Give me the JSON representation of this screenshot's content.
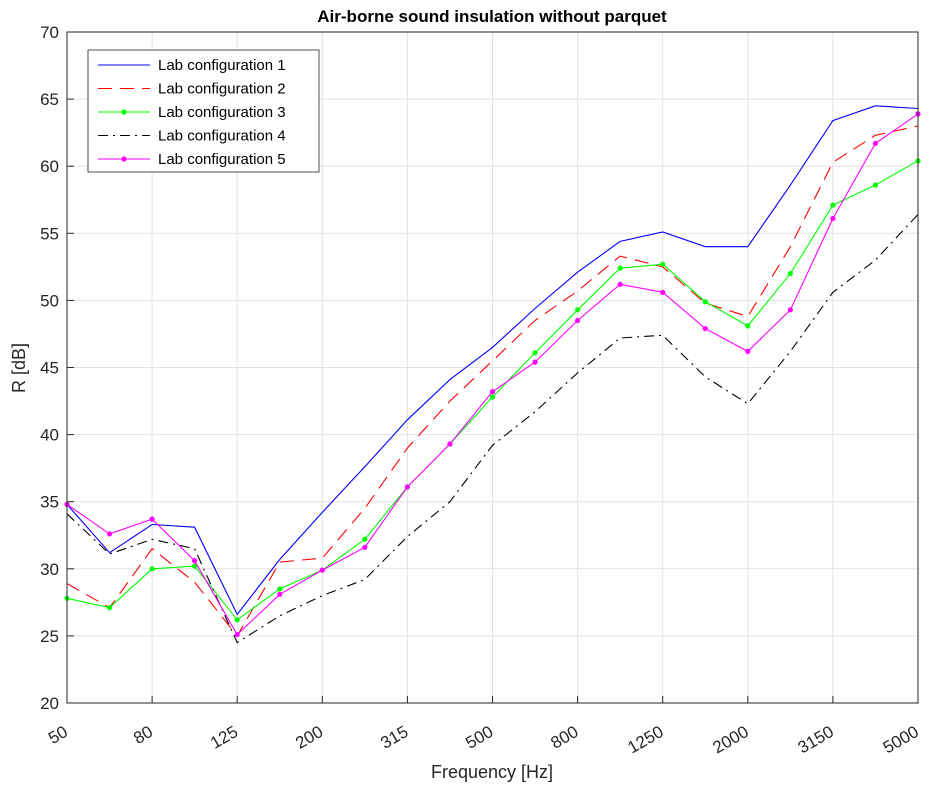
{
  "chart_data": {
    "type": "line",
    "title": "Air-borne sound insulation without parquet",
    "xlabel": "Frequency [Hz]",
    "ylabel": "R [dB]",
    "ylim": [
      20,
      70
    ],
    "yticks": [
      20,
      25,
      30,
      35,
      40,
      45,
      50,
      55,
      60,
      65,
      70
    ],
    "x": [
      50,
      63,
      80,
      100,
      125,
      160,
      200,
      250,
      315,
      400,
      500,
      630,
      800,
      1000,
      1250,
      1600,
      2000,
      2500,
      3150,
      4000,
      5000
    ],
    "x_tick_labels": [
      "50",
      "80",
      "125",
      "200",
      "315",
      "500",
      "800",
      "1250",
      "2000",
      "3150",
      "5000"
    ],
    "x_tick_indices": [
      0,
      2,
      4,
      6,
      8,
      10,
      12,
      14,
      16,
      18,
      20
    ],
    "grid": true,
    "legend_position": "top-left",
    "series": [
      {
        "name": "Lab configuration 1",
        "color": "#0000ff",
        "dash": "solid",
        "marker": false,
        "values": [
          34.8,
          31.2,
          33.3,
          33.1,
          26.6,
          30.7,
          34.2,
          37.6,
          41.1,
          44.1,
          46.5,
          49.4,
          52.1,
          54.4,
          55.1,
          54.0,
          54.0,
          58.6,
          63.4,
          64.5,
          64.3
        ]
      },
      {
        "name": "Lab configuration 2",
        "color": "#ff0000",
        "dash": "dashed",
        "marker": false,
        "values": [
          28.9,
          27.1,
          31.5,
          29.0,
          25.0,
          30.5,
          30.8,
          34.5,
          39.0,
          42.5,
          45.5,
          48.5,
          50.7,
          53.3,
          52.5,
          49.8,
          48.8,
          54.0,
          60.3,
          62.3,
          63.0
        ]
      },
      {
        "name": "Lab configuration 3",
        "color": "#00ff00",
        "dash": "solid",
        "marker": true,
        "values": [
          27.8,
          27.1,
          30.0,
          30.2,
          26.2,
          28.5,
          29.9,
          32.2,
          36.1,
          39.3,
          42.8,
          46.1,
          49.3,
          52.4,
          52.7,
          49.9,
          48.1,
          52.0,
          57.1,
          58.6,
          60.4
        ]
      },
      {
        "name": "Lab configuration 4",
        "color": "#000000",
        "dash": "dashdot",
        "marker": false,
        "values": [
          34.1,
          31.1,
          32.2,
          31.5,
          24.5,
          26.5,
          28.0,
          29.2,
          32.4,
          35.0,
          39.2,
          41.7,
          44.6,
          47.2,
          47.4,
          44.3,
          42.3,
          46.2,
          50.6,
          53.0,
          56.4
        ]
      },
      {
        "name": "Lab configuration 5",
        "color": "#ff00ff",
        "dash": "solid",
        "marker": true,
        "values": [
          34.8,
          32.6,
          33.7,
          30.6,
          25.1,
          28.1,
          29.9,
          31.6,
          36.1,
          39.3,
          43.2,
          45.4,
          48.5,
          51.2,
          50.6,
          47.9,
          46.2,
          49.3,
          56.1,
          61.7,
          63.9
        ]
      }
    ]
  }
}
